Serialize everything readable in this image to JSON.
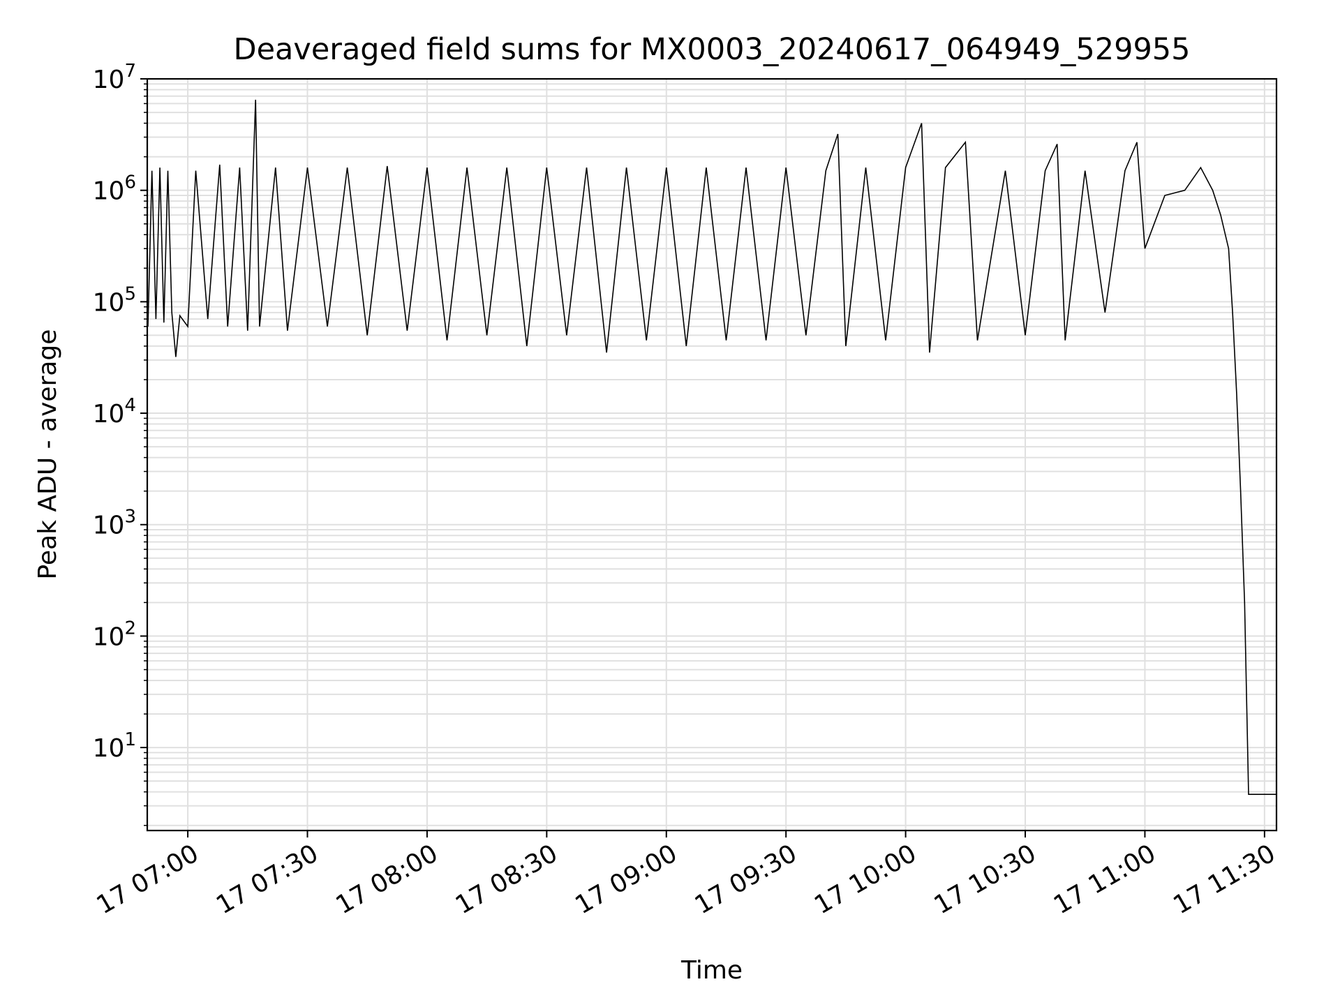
{
  "chart_data": {
    "type": "line",
    "title": "Deaveraged field sums for MX0003_20240617_064949_529955",
    "xlabel": "Time",
    "ylabel": "Peak ADU - average",
    "yscale": "log",
    "ylim": [
      1.8,
      10000000
    ],
    "xlim": [
      "2024-06-17 06:49:50",
      "2024-06-17 11:33:00"
    ],
    "grid": true,
    "line_color": "#000000",
    "grid_color": "#e0e0e0",
    "x_ticks": [
      "17 07:00",
      "17 07:30",
      "17 08:00",
      "17 08:30",
      "17 09:00",
      "17 09:30",
      "17 10:00",
      "17 10:30",
      "17 11:00",
      "17 11:30"
    ],
    "y_ticks": [
      {
        "base": "10",
        "exp": "1",
        "value": 10
      },
      {
        "base": "10",
        "exp": "2",
        "value": 100
      },
      {
        "base": "10",
        "exp": "3",
        "value": 1000
      },
      {
        "base": "10",
        "exp": "4",
        "value": 10000
      },
      {
        "base": "10",
        "exp": "5",
        "value": 100000
      },
      {
        "base": "10",
        "exp": "6",
        "value": 1000000
      },
      {
        "base": "10",
        "exp": "7",
        "value": 10000000
      }
    ],
    "series": [
      {
        "description": "dense series fluctuating between ~4e4 and ~1.6e6 from 06:50 to ~11:10, a few spikes up to ~6.5e6, rising baseline near 1e6 around 11:00-11:17, steep drop to ~3.8 at ~11:26, flat ~3.8 with small ticks to 11:33",
        "points": [
          [
            "2024-06-17 06:50:00",
            60000
          ],
          [
            "2024-06-17 06:51:00",
            1500000
          ],
          [
            "2024-06-17 06:52:00",
            70000
          ],
          [
            "2024-06-17 06:53:00",
            1600000
          ],
          [
            "2024-06-17 06:54:00",
            65000
          ],
          [
            "2024-06-17 06:55:00",
            1500000
          ],
          [
            "2024-06-17 06:56:00",
            80000
          ],
          [
            "2024-06-17 06:57:00",
            32000
          ],
          [
            "2024-06-17 06:58:00",
            75000
          ],
          [
            "2024-06-17 07:00:00",
            60000
          ],
          [
            "2024-06-17 07:02:00",
            1500000
          ],
          [
            "2024-06-17 07:05:00",
            70000
          ],
          [
            "2024-06-17 07:08:00",
            1700000
          ],
          [
            "2024-06-17 07:10:00",
            60000
          ],
          [
            "2024-06-17 07:13:00",
            1600000
          ],
          [
            "2024-06-17 07:15:00",
            55000
          ],
          [
            "2024-06-17 07:17:00",
            6500000
          ],
          [
            "2024-06-17 07:18:00",
            60000
          ],
          [
            "2024-06-17 07:22:00",
            1600000
          ],
          [
            "2024-06-17 07:25:00",
            55000
          ],
          [
            "2024-06-17 07:30:00",
            1600000
          ],
          [
            "2024-06-17 07:35:00",
            60000
          ],
          [
            "2024-06-17 07:40:00",
            1600000
          ],
          [
            "2024-06-17 07:45:00",
            50000
          ],
          [
            "2024-06-17 07:50:00",
            1650000
          ],
          [
            "2024-06-17 07:55:00",
            55000
          ],
          [
            "2024-06-17 08:00:00",
            1600000
          ],
          [
            "2024-06-17 08:05:00",
            45000
          ],
          [
            "2024-06-17 08:10:00",
            1600000
          ],
          [
            "2024-06-17 08:15:00",
            50000
          ],
          [
            "2024-06-17 08:20:00",
            1600000
          ],
          [
            "2024-06-17 08:25:00",
            40000
          ],
          [
            "2024-06-17 08:30:00",
            1600000
          ],
          [
            "2024-06-17 08:35:00",
            50000
          ],
          [
            "2024-06-17 08:40:00",
            1600000
          ],
          [
            "2024-06-17 08:45:00",
            35000
          ],
          [
            "2024-06-17 08:50:00",
            1600000
          ],
          [
            "2024-06-17 08:55:00",
            45000
          ],
          [
            "2024-06-17 09:00:00",
            1600000
          ],
          [
            "2024-06-17 09:05:00",
            40000
          ],
          [
            "2024-06-17 09:10:00",
            1600000
          ],
          [
            "2024-06-17 09:15:00",
            45000
          ],
          [
            "2024-06-17 09:20:00",
            1600000
          ],
          [
            "2024-06-17 09:25:00",
            45000
          ],
          [
            "2024-06-17 09:30:00",
            1600000
          ],
          [
            "2024-06-17 09:35:00",
            50000
          ],
          [
            "2024-06-17 09:40:00",
            1500000
          ],
          [
            "2024-06-17 09:43:00",
            3200000
          ],
          [
            "2024-06-17 09:45:00",
            40000
          ],
          [
            "2024-06-17 09:50:00",
            1600000
          ],
          [
            "2024-06-17 09:55:00",
            45000
          ],
          [
            "2024-06-17 10:00:00",
            1600000
          ],
          [
            "2024-06-17 10:04:00",
            4000000
          ],
          [
            "2024-06-17 10:06:00",
            35000
          ],
          [
            "2024-06-17 10:10:00",
            1600000
          ],
          [
            "2024-06-17 10:15:00",
            2700000
          ],
          [
            "2024-06-17 10:18:00",
            45000
          ],
          [
            "2024-06-17 10:25:00",
            1500000
          ],
          [
            "2024-06-17 10:30:00",
            50000
          ],
          [
            "2024-06-17 10:35:00",
            1500000
          ],
          [
            "2024-06-17 10:38:00",
            2600000
          ],
          [
            "2024-06-17 10:40:00",
            45000
          ],
          [
            "2024-06-17 10:45:00",
            1500000
          ],
          [
            "2024-06-17 10:50:00",
            80000
          ],
          [
            "2024-06-17 10:55:00",
            1500000
          ],
          [
            "2024-06-17 10:58:00",
            2700000
          ],
          [
            "2024-06-17 11:00:00",
            300000
          ],
          [
            "2024-06-17 11:05:00",
            900000
          ],
          [
            "2024-06-17 11:10:00",
            1000000
          ],
          [
            "2024-06-17 11:14:00",
            1600000
          ],
          [
            "2024-06-17 11:17:00",
            1000000
          ],
          [
            "2024-06-17 11:19:00",
            600000
          ],
          [
            "2024-06-17 11:21:00",
            300000
          ],
          [
            "2024-06-17 11:22:00",
            80000
          ],
          [
            "2024-06-17 11:23:00",
            15000
          ],
          [
            "2024-06-17 11:24:00",
            2000
          ],
          [
            "2024-06-17 11:25:00",
            200
          ],
          [
            "2024-06-17 11:26:00",
            3.8
          ],
          [
            "2024-06-17 11:33:00",
            3.8
          ]
        ]
      }
    ]
  }
}
